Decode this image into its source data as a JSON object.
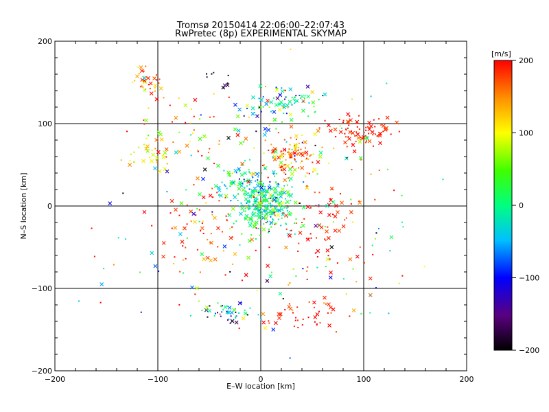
{
  "chart_data": {
    "type": "scatter",
    "title": "Tromsø 20150414 22:06:00–22:07:43",
    "subtitle": "RwPretec (8p) EXPERIMENTAL SKYMAP",
    "xlabel": "E–W location [km]",
    "ylabel": "N–S location [km]",
    "xlim": [
      -200,
      200
    ],
    "ylim": [
      -200,
      200
    ],
    "xticks": [
      -200,
      -100,
      0,
      100,
      200
    ],
    "yticks": [
      -200,
      -100,
      0,
      100,
      200
    ],
    "grid": true,
    "colorbar": {
      "label": "[m/s]",
      "range": [
        -200,
        200
      ],
      "ticks": [
        200,
        100,
        0,
        -100,
        -200
      ],
      "colormap": "rainbow (black-purple-blue-cyan-green-yellow-red)"
    },
    "clusters": [
      {
        "x": 5,
        "y": 0,
        "spread_x": 14,
        "spread_y": 16,
        "v": 0,
        "v_spread": 40,
        "n": 260
      },
      {
        "x": -15,
        "y": 30,
        "spread_x": 14,
        "spread_y": 10,
        "v": -10,
        "v_spread": 50,
        "n": 90
      },
      {
        "x": 30,
        "y": 60,
        "spread_x": 14,
        "spread_y": 12,
        "v": 160,
        "v_spread": 40,
        "n": 110
      },
      {
        "x": 20,
        "y": 120,
        "spread_x": 20,
        "spread_y": 15,
        "v": 30,
        "v_spread": 90,
        "n": 70
      },
      {
        "x": 95,
        "y": 90,
        "spread_x": 15,
        "spread_y": 10,
        "v": 190,
        "v_spread": 15,
        "n": 80
      },
      {
        "x": -110,
        "y": 150,
        "spread_x": 8,
        "spread_y": 10,
        "v": 150,
        "v_spread": 40,
        "n": 35
      },
      {
        "x": -110,
        "y": 65,
        "spread_x": 10,
        "spread_y": 10,
        "v": 110,
        "v_spread": 30,
        "n": 30
      },
      {
        "x": -30,
        "y": -130,
        "spread_x": 15,
        "spread_y": 7,
        "v": -60,
        "v_spread": 80,
        "n": 45
      },
      {
        "x": 40,
        "y": -130,
        "spread_x": 25,
        "spread_y": 10,
        "v": 190,
        "v_spread": 20,
        "n": 45
      },
      {
        "x": -50,
        "y": -30,
        "spread_x": 25,
        "spread_y": 25,
        "v": 180,
        "v_spread": 30,
        "n": 60
      },
      {
        "x": 60,
        "y": -20,
        "spread_x": 25,
        "spread_y": 30,
        "v": 190,
        "v_spread": 20,
        "n": 70
      },
      {
        "x": 0,
        "y": 0,
        "spread_x": 70,
        "spread_y": 70,
        "v": 50,
        "v_spread": 140,
        "n": 220
      },
      {
        "x": -40,
        "y": 150,
        "spread_x": 8,
        "spread_y": 10,
        "v": -170,
        "v_spread": 30,
        "n": 10
      },
      {
        "x": 30,
        "y": 130,
        "spread_x": 10,
        "spread_y": 5,
        "v": -20,
        "v_spread": 30,
        "n": 25
      },
      {
        "x": -70,
        "y": 100,
        "spread_x": 30,
        "spread_y": 20,
        "v": 150,
        "v_spread": 60,
        "n": 40
      }
    ]
  }
}
